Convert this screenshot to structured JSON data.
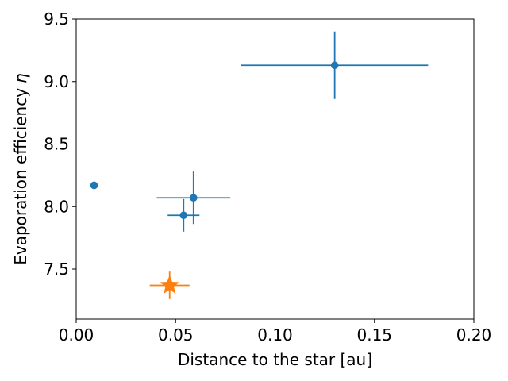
{
  "chart_data": {
    "type": "scatter",
    "xlabel": "Distance to the star [au]",
    "ylabel": "Evaporation efficiency",
    "ylabel_symbol": "η",
    "xlim": [
      0.0,
      0.2
    ],
    "ylim": [
      7.1,
      9.5
    ],
    "xticks": [
      "0.00",
      "0.05",
      "0.10",
      "0.15",
      "0.20"
    ],
    "yticks": [
      "7.5",
      "8.0",
      "8.5",
      "9.0",
      "9.5"
    ],
    "grid": false,
    "colors": {
      "series_main": "#1f77b4",
      "series_highlight": "#ff7f0e"
    },
    "series": [
      {
        "marker": "circle",
        "points": [
          {
            "x": 0.009,
            "y": 8.17,
            "xerr": 0.0005,
            "yerr": 0.03
          },
          {
            "x": 0.054,
            "y": 7.93,
            "xerr": 0.008,
            "yerr": 0.13
          },
          {
            "x": 0.059,
            "y": 8.07,
            "xerr": 0.0185,
            "yerr": 0.21
          },
          {
            "x": 0.13,
            "y": 9.13,
            "xerr": 0.047,
            "yerr": 0.27
          }
        ]
      },
      {
        "marker": "star",
        "points": [
          {
            "x": 0.047,
            "y": 7.37,
            "xerr": 0.01,
            "yerr": 0.11
          }
        ]
      }
    ]
  }
}
